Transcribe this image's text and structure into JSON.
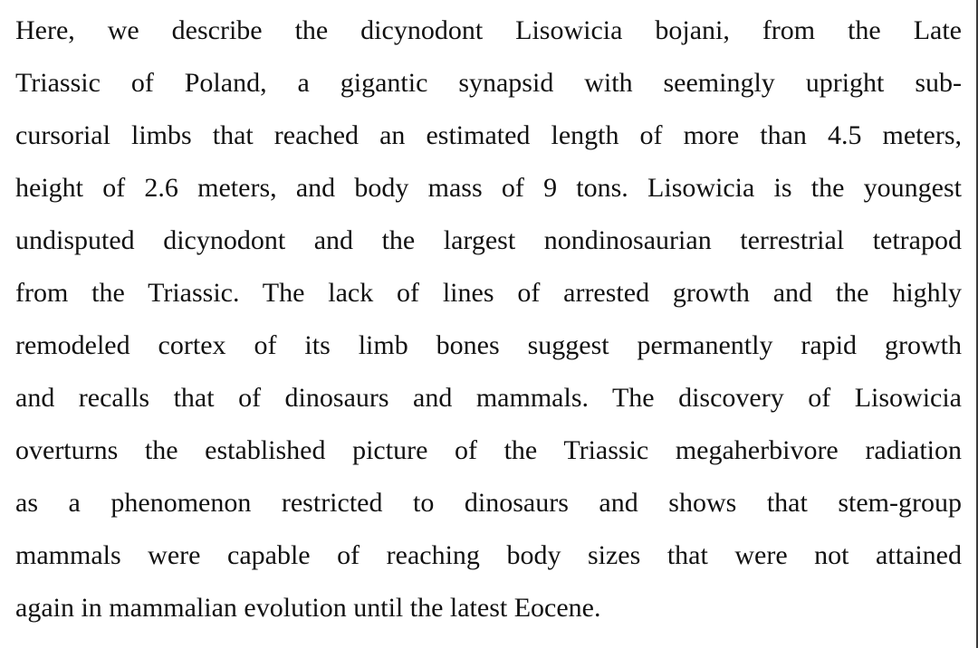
{
  "colors": {
    "background": "#ffffff",
    "text": "#111111",
    "right_edge_line": "#3a3a3a"
  },
  "document": {
    "lines": [
      "Here, we describe the dicynodont Lisowicia bojani, from the Late",
      "Triassic of Poland, a gigantic synapsid with seemingly upright sub-",
      "cursorial limbs that reached an estimated length of more than 4.5 meters,",
      "height of 2.6 meters, and body mass of 9 tons. Lisowicia is the youngest",
      "undisputed dicynodont and the largest nondinosaurian terrestrial tetrapod",
      "from the Triassic. The lack of lines of arrested growth and the highly",
      "remodeled cortex of its limb bones suggest permanently rapid growth",
      "and recalls that of dinosaurs and mammals. The discovery of Lisowicia",
      "overturns the established picture of the Triassic megaherbivore radiation",
      "as a phenomenon restricted to dinosaurs and shows that stem-group",
      "mammals were capable of reaching body sizes that were not attained",
      "again in mammalian evolution until the latest Eocene."
    ],
    "full_text": "Here, we describe the dicynodont Lisowicia bojani, from the Late Triassic of Poland, a gigantic synapsid with seemingly upright sub-cursorial limbs that reached an estimated length of more than 4.5 meters, height of 2.6 meters, and body mass of 9 tons. Lisowicia is the youngest undisputed dicynodont and the largest nondinosaurian terrestrial tetrapod from the Triassic. The lack of lines of arrested growth and the highly remodeled cortex of its limb bones suggest permanently rapid growth and recalls that of dinosaurs and mammals. The discovery of Lisowicia overturns the established picture of the Triassic megaherbivore radiation as a phenomenon restricted to dinosaurs and shows that stem-group mammals were capable of reaching body sizes that were not attained again in mammalian evolution until the latest Eocene."
  }
}
